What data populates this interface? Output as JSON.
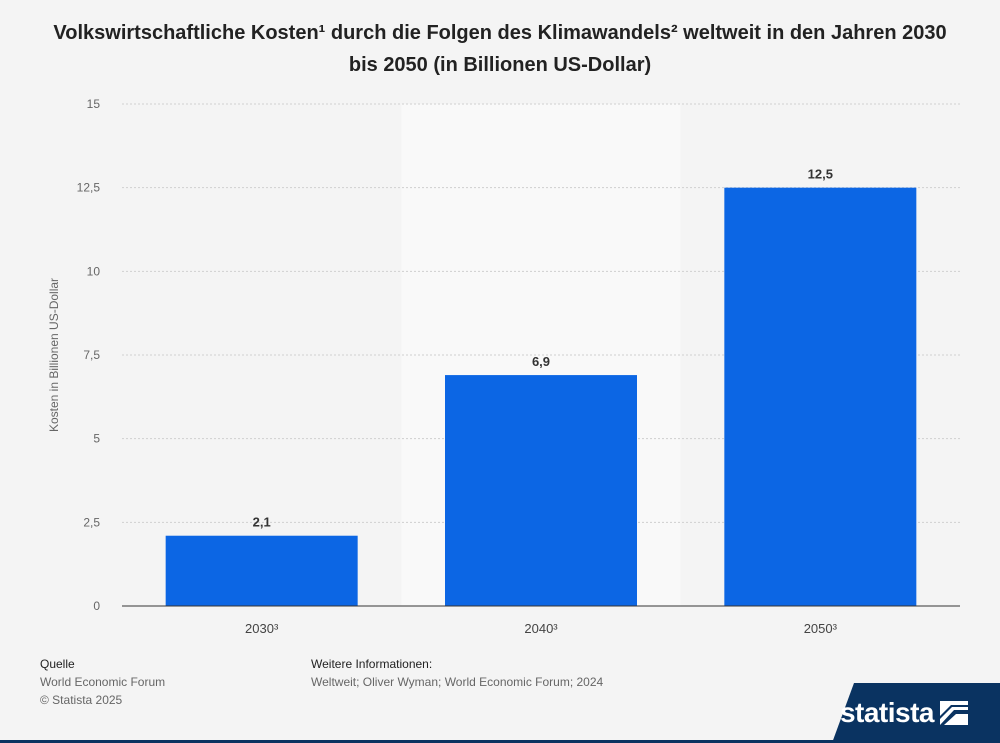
{
  "title": "Volkswirtschaftliche Kosten¹ durch die Folgen des Klimawandels² weltweit in den Jahren 2030 bis 2050 (in Billionen US-Dollar)",
  "chart_data": {
    "type": "bar",
    "categories": [
      "2030³",
      "2040³",
      "2050³"
    ],
    "values": [
      2.1,
      6.9,
      12.5
    ],
    "value_labels": [
      "2,1",
      "6,9",
      "12,5"
    ],
    "ylabel": "Kosten in Billionen US-Dollar",
    "xlabel": "",
    "ylim": [
      0,
      15
    ],
    "yticks": [
      0,
      2.5,
      5,
      7.5,
      10,
      12.5,
      15
    ],
    "ytick_labels": [
      "0",
      "2,5",
      "5",
      "7,5",
      "10",
      "12,5",
      "15"
    ],
    "grid": true,
    "bar_color": "#0c66e4"
  },
  "footer": {
    "source_heading": "Quelle",
    "source": "World Economic Forum",
    "copyright": "© Statista 2025",
    "info_heading": "Weitere Informationen:",
    "info": "Weltweit; Oliver Wyman; World Economic Forum; 2024"
  },
  "brand": {
    "name": "statista",
    "color": "#0a3361"
  }
}
